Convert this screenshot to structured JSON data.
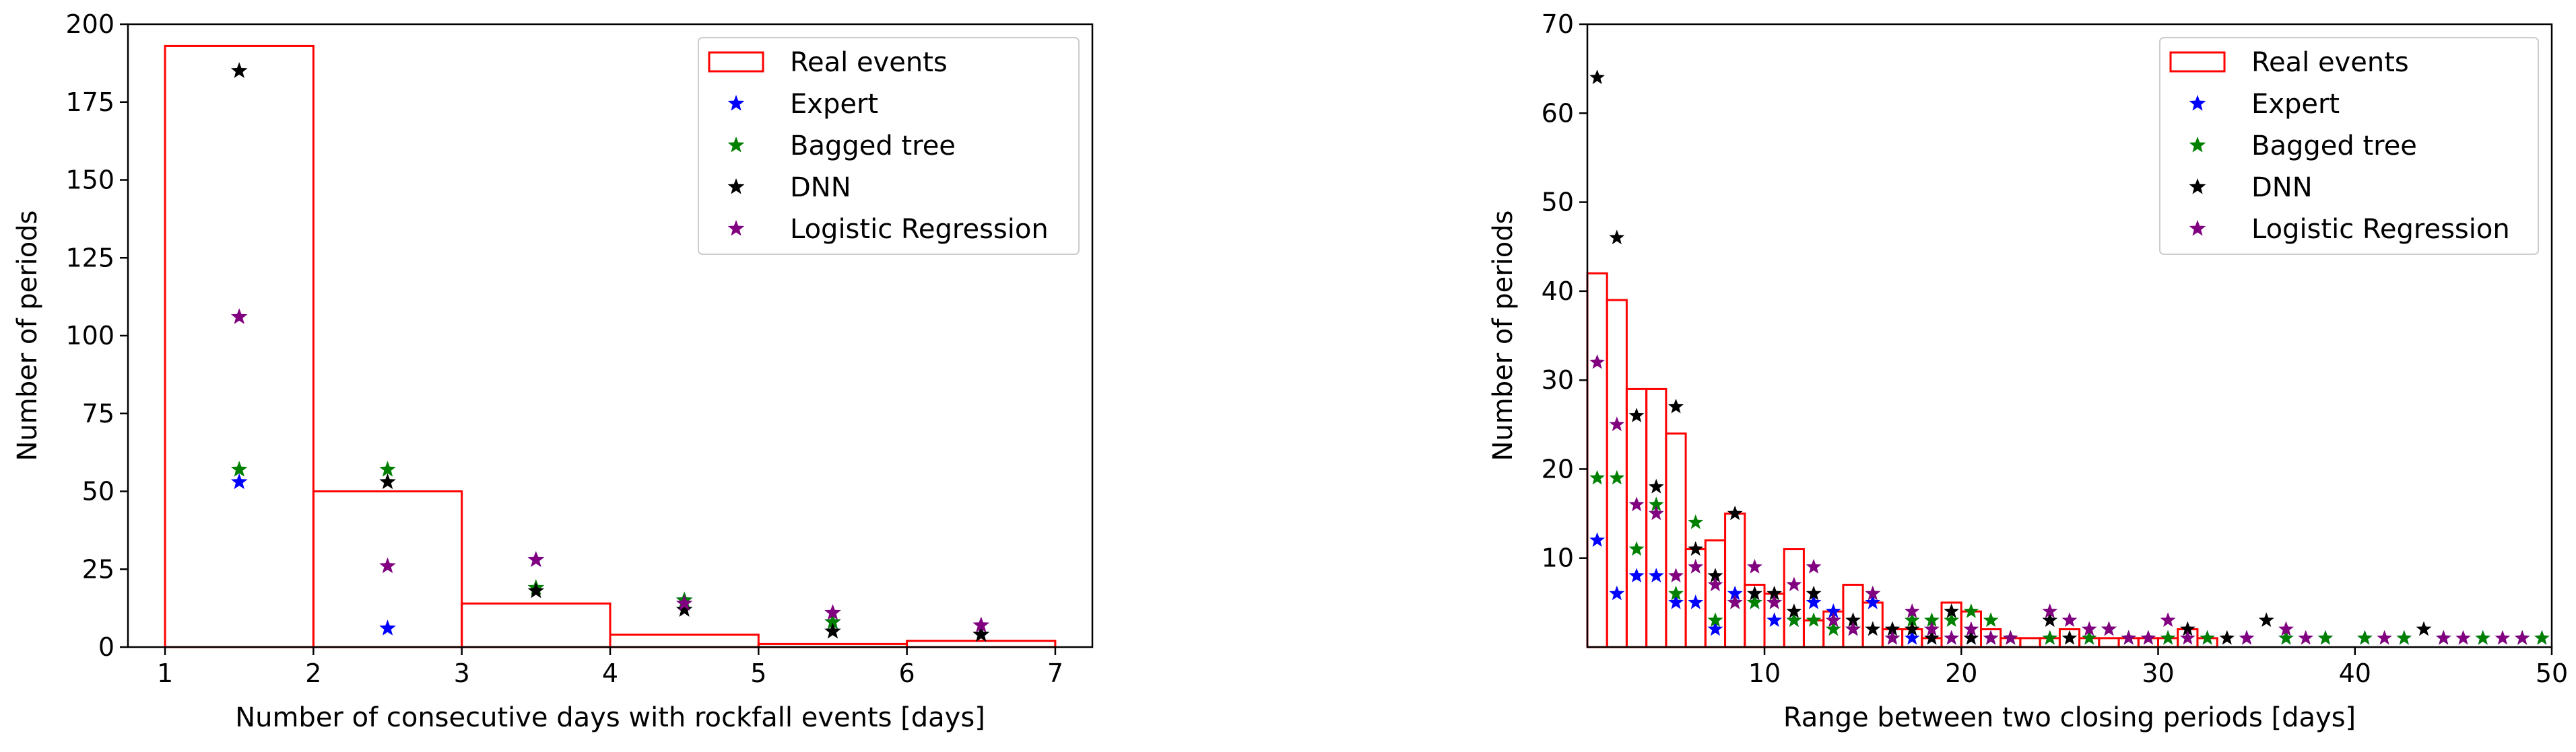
{
  "figure": {
    "panels": [
      {
        "xlabel": "Number of consecutive days with rockfall events [days]",
        "ylabel": "Number of periods",
        "xticks": [
          "1",
          "2",
          "3",
          "4",
          "5",
          "6",
          "7"
        ],
        "yticks": [
          "0",
          "25",
          "50",
          "75",
          "100",
          "125",
          "150",
          "175",
          "200"
        ],
        "legend": [
          "Real events",
          "Expert",
          "Bagged tree",
          "DNN",
          "Logistic Regression"
        ]
      },
      {
        "xlabel": "Range between two closing periods [days]",
        "ylabel": "Number of periods",
        "xticks": [
          "10",
          "20",
          "30",
          "40",
          "50"
        ],
        "yticks": [
          "10",
          "20",
          "30",
          "40",
          "50",
          "60",
          "70"
        ],
        "legend": [
          "Real events",
          "Expert",
          "Bagged tree",
          "DNN",
          "Logistic Regression"
        ]
      }
    ]
  },
  "chart_data": [
    {
      "type": "bar",
      "xlabel": "Number of consecutive days with rockfall events [days]",
      "ylabel": "Number of periods",
      "xlim": [
        0.75,
        7.25
      ],
      "ylim": [
        0,
        200
      ],
      "legend_position": "upper right",
      "bins": [
        [
          1,
          2
        ],
        [
          2,
          3
        ],
        [
          3,
          4
        ],
        [
          4,
          5
        ],
        [
          5,
          6
        ],
        [
          6,
          7
        ]
      ],
      "histogram": {
        "name": "Real events",
        "color": "#ff0000",
        "values": [
          193,
          50,
          14,
          4,
          1,
          2
        ]
      },
      "scatter_x": [
        1.5,
        2.5,
        3.5,
        4.5,
        5.5,
        6.5
      ],
      "series": [
        {
          "name": "Expert",
          "color": "#0000ff",
          "values": [
            53,
            6,
            28,
            15,
            8,
            4
          ]
        },
        {
          "name": "Bagged tree",
          "color": "#008000",
          "values": [
            57,
            57,
            19,
            15,
            8,
            4
          ]
        },
        {
          "name": "DNN",
          "color": "#000000",
          "values": [
            185,
            53,
            18,
            12,
            5,
            4
          ]
        },
        {
          "name": "Logistic Regression",
          "color": "#800080",
          "values": [
            106,
            26,
            28,
            14,
            11,
            7
          ]
        }
      ]
    },
    {
      "type": "bar",
      "xlabel": "Range between two closing periods [days]",
      "ylabel": "Number of periods",
      "xlim": [
        1,
        50
      ],
      "ylim": [
        0,
        70
      ],
      "legend_position": "upper right",
      "histogram": {
        "name": "Real events",
        "color": "#ff0000",
        "bins": [
          [
            1,
            2
          ],
          [
            2,
            3
          ],
          [
            3,
            4
          ],
          [
            4,
            5
          ],
          [
            5,
            6
          ],
          [
            6,
            7
          ],
          [
            7,
            8
          ],
          [
            8,
            9
          ],
          [
            9,
            10
          ],
          [
            10,
            11
          ],
          [
            11,
            12
          ],
          [
            12,
            13
          ],
          [
            13,
            14
          ],
          [
            14,
            15
          ],
          [
            15,
            16
          ],
          [
            16,
            17
          ],
          [
            17,
            18
          ],
          [
            18,
            19
          ],
          [
            19,
            20
          ],
          [
            20,
            21
          ],
          [
            21,
            22
          ],
          [
            22,
            23
          ],
          [
            23,
            24
          ],
          [
            24,
            25
          ],
          [
            25,
            26
          ],
          [
            26,
            27
          ],
          [
            27,
            28
          ],
          [
            28,
            29
          ],
          [
            29,
            30
          ],
          [
            30,
            31
          ],
          [
            31,
            32
          ],
          [
            32,
            33
          ]
        ],
        "values": [
          42,
          39,
          29,
          29,
          24,
          11,
          12,
          15,
          7,
          6,
          11,
          3,
          4,
          7,
          5,
          2,
          2,
          1,
          5,
          4,
          2,
          1,
          1,
          1,
          2,
          1,
          1,
          1,
          1,
          1,
          2,
          1
        ]
      },
      "series": [
        {
          "name": "Expert",
          "color": "#0000ff",
          "x": [
            1.5,
            2.5,
            3.5,
            4.5,
            5.5,
            6.5,
            7.5,
            8.5,
            9.5,
            10.5,
            11.5,
            12.5,
            13.5,
            14.5,
            15.5,
            16.5,
            17.5,
            18.5,
            19.5,
            20.5,
            21.5,
            22.5,
            24.5,
            26.5,
            28.5,
            30.5,
            32.5,
            34.5,
            36.5,
            38.5,
            40.5,
            42.5,
            44.5,
            46.5,
            48.5,
            49.5
          ],
          "values": [
            12,
            6,
            8,
            8,
            5,
            5,
            2,
            6,
            5,
            3,
            3,
            5,
            4,
            2,
            5,
            1,
            1,
            1,
            1,
            1,
            1,
            1,
            1,
            1,
            1,
            1,
            1,
            1,
            1,
            1,
            1,
            1,
            1,
            1,
            1,
            1
          ]
        },
        {
          "name": "Bagged tree",
          "color": "#008000",
          "x": [
            1.5,
            2.5,
            3.5,
            4.5,
            5.5,
            6.5,
            7.5,
            8.5,
            9.5,
            10.5,
            11.5,
            12.5,
            13.5,
            14.5,
            15.5,
            16.5,
            17.5,
            18.5,
            19.5,
            20.5,
            21.5,
            22.5,
            24.5,
            26.5,
            28.5,
            30.5,
            32.5,
            36.5,
            38.5,
            40.5,
            42.5,
            44.5,
            46.5,
            48.5,
            49.5
          ],
          "values": [
            19,
            19,
            11,
            16,
            6,
            14,
            3,
            5,
            5,
            5,
            3,
            3,
            2,
            2,
            6,
            1,
            3,
            3,
            3,
            4,
            3,
            1,
            1,
            1,
            1,
            1,
            1,
            1,
            1,
            1,
            1,
            1,
            1,
            1,
            1
          ]
        },
        {
          "name": "DNN",
          "color": "#000000",
          "x": [
            1.5,
            2.5,
            3.5,
            4.5,
            5.5,
            6.5,
            7.5,
            8.5,
            9.5,
            10.5,
            11.5,
            12.5,
            13.5,
            14.5,
            15.5,
            16.5,
            17.5,
            18.5,
            19.5,
            20.5,
            21.5,
            22.5,
            24.5,
            25.5,
            27.5,
            29.5,
            31.5,
            33.5,
            35.5,
            43.5
          ],
          "values": [
            64,
            46,
            26,
            18,
            27,
            11,
            8,
            15,
            6,
            6,
            4,
            6,
            3,
            3,
            2,
            2,
            2,
            1,
            4,
            1,
            1,
            1,
            3,
            1,
            2,
            1,
            2,
            1,
            3,
            2
          ]
        },
        {
          "name": "Logistic Regression",
          "color": "#800080",
          "x": [
            1.5,
            2.5,
            3.5,
            4.5,
            5.5,
            6.5,
            7.5,
            8.5,
            9.5,
            10.5,
            11.5,
            12.5,
            13.5,
            14.5,
            15.5,
            16.5,
            17.5,
            18.5,
            19.5,
            20.5,
            21.5,
            22.5,
            24.5,
            25.5,
            26.5,
            27.5,
            28.5,
            29.5,
            30.5,
            31.5,
            34.5,
            36.5,
            37.5,
            41.5,
            44.5,
            45.5,
            47.5,
            48.5
          ],
          "values": [
            32,
            25,
            16,
            15,
            8,
            9,
            7,
            5,
            9,
            5,
            7,
            9,
            3,
            2,
            6,
            1,
            4,
            2,
            1,
            2,
            1,
            1,
            4,
            3,
            2,
            2,
            1,
            1,
            3,
            1,
            1,
            2,
            1,
            1,
            1,
            1,
            1,
            1
          ]
        }
      ]
    }
  ]
}
